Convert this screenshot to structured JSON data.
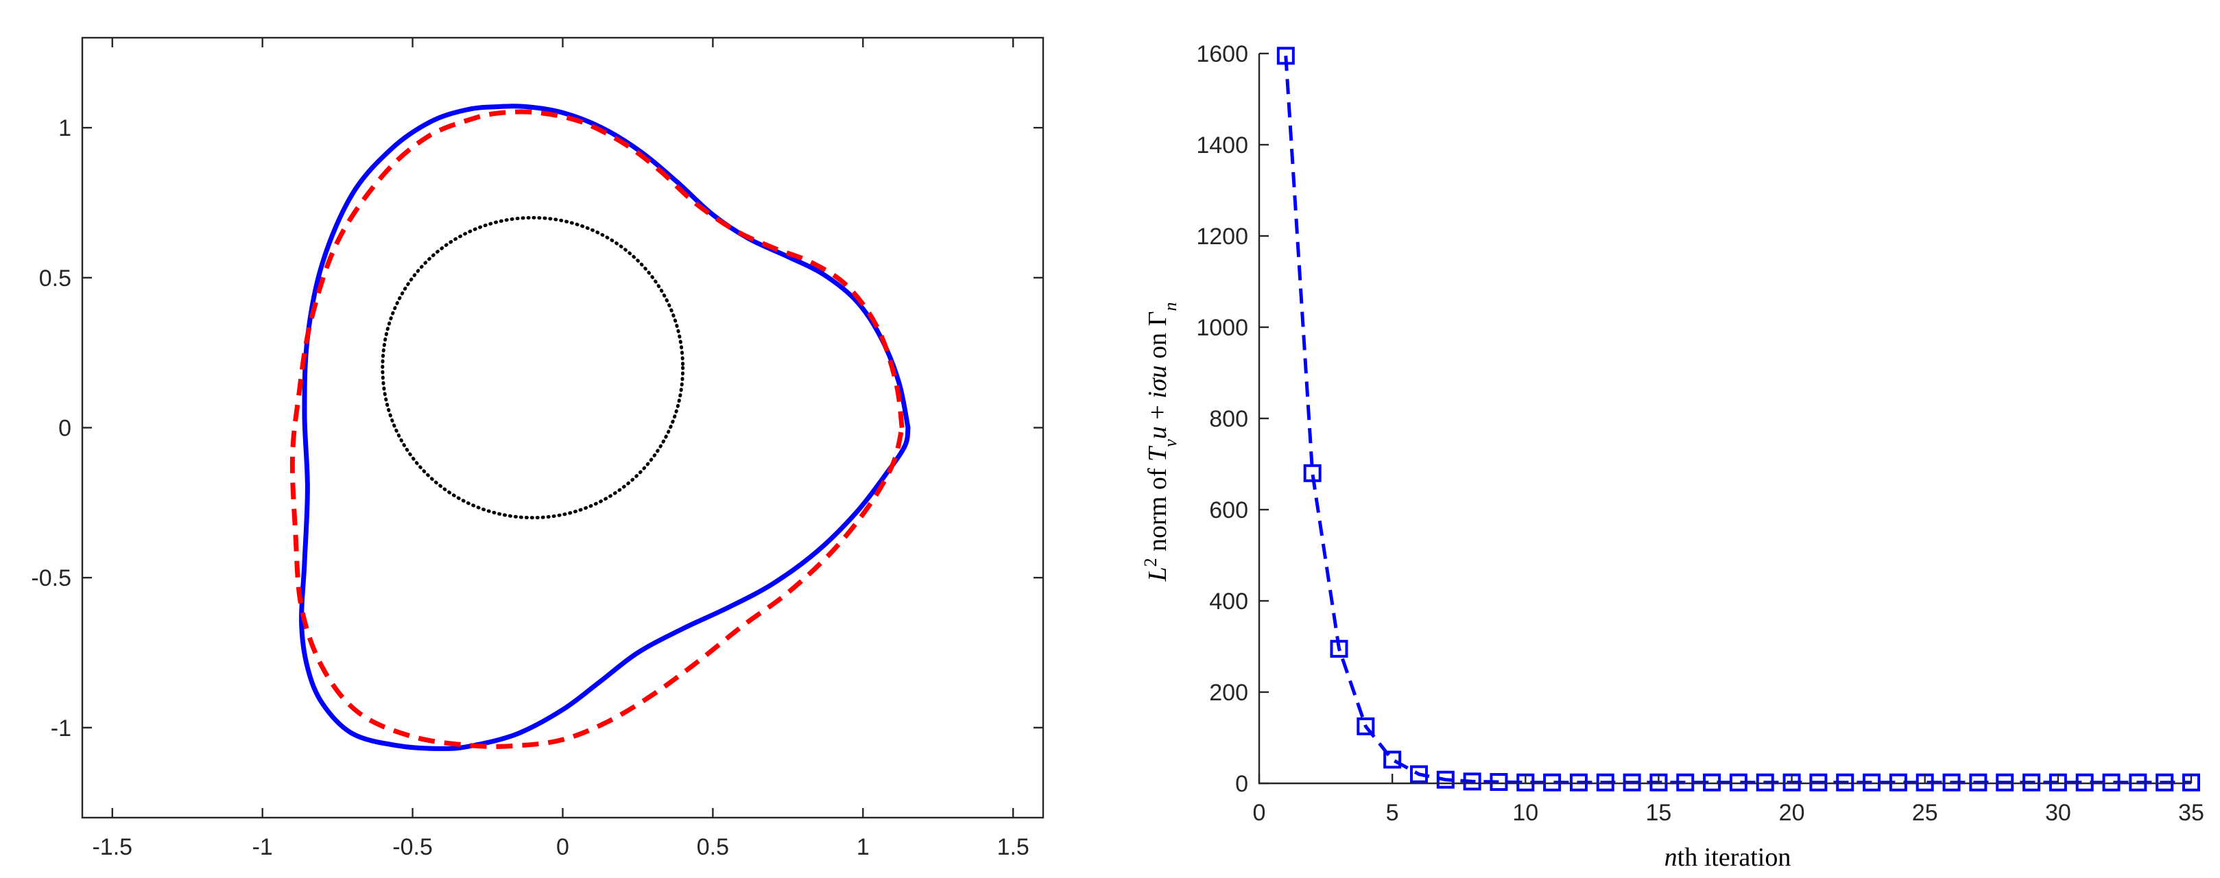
{
  "chart_data": [
    {
      "type": "line",
      "title": "",
      "xlabel": "",
      "ylabel": "",
      "xlim": [
        -1.6,
        1.6
      ],
      "ylim": [
        -1.3,
        1.3
      ],
      "xticks": [
        "-1.5",
        "-1",
        "-0.5",
        "0",
        "0.5",
        "1",
        "1.5"
      ],
      "xtick_values": [
        -1.5,
        -1,
        -0.5,
        0,
        0.5,
        1,
        1.5
      ],
      "yticks": [
        "-1",
        "-0.5",
        "0",
        "0.5",
        "1"
      ],
      "ytick_values": [
        -1,
        -0.5,
        0,
        0.5,
        1
      ],
      "grid": false,
      "legend": "none",
      "series": [
        {
          "style": "solid",
          "color": "#0000ff",
          "x": [
            1.15,
            1.12,
            1.06,
            0.98,
            0.87,
            0.75,
            0.62,
            0.5,
            0.38,
            0.26,
            0.13,
            0.0,
            -0.12,
            -0.22,
            -0.32,
            -0.44,
            -0.57,
            -0.7,
            -0.8,
            -0.85,
            -0.86,
            -0.85,
            -0.86,
            -0.87,
            -0.85,
            -0.8,
            -0.7,
            -0.55,
            -0.4,
            -0.3,
            -0.15,
            0.0,
            0.12,
            0.25,
            0.4,
            0.55,
            0.7,
            0.85,
            0.98,
            1.08,
            1.14,
            1.15
          ],
          "y": [
            0.0,
            0.15,
            0.3,
            0.42,
            0.51,
            0.57,
            0.63,
            0.71,
            0.82,
            0.92,
            1.0,
            1.05,
            1.07,
            1.07,
            1.06,
            1.02,
            0.93,
            0.78,
            0.55,
            0.3,
            0.05,
            -0.2,
            -0.45,
            -0.65,
            -0.8,
            -0.92,
            -1.02,
            -1.06,
            -1.07,
            -1.06,
            -1.02,
            -0.94,
            -0.85,
            -0.75,
            -0.67,
            -0.6,
            -0.52,
            -0.41,
            -0.28,
            -0.15,
            -0.06,
            0.0
          ]
        },
        {
          "style": "dashed",
          "color": "#ff0000",
          "x": [
            1.13,
            1.11,
            1.05,
            0.95,
            0.83,
            0.7,
            0.57,
            0.44,
            0.32,
            0.2,
            0.06,
            -0.08,
            -0.2,
            -0.3,
            -0.45,
            -0.6,
            -0.75,
            -0.84,
            -0.88,
            -0.9,
            -0.89,
            -0.87,
            -0.8,
            -0.68,
            -0.5,
            -0.3,
            -0.15,
            0.0,
            0.15,
            0.3,
            0.45,
            0.6,
            0.75,
            0.9,
            1.02,
            1.1,
            1.13
          ],
          "y": [
            0.0,
            0.15,
            0.33,
            0.47,
            0.55,
            0.6,
            0.66,
            0.75,
            0.86,
            0.95,
            1.02,
            1.05,
            1.05,
            1.03,
            0.97,
            0.84,
            0.62,
            0.35,
            0.1,
            -0.1,
            -0.35,
            -0.6,
            -0.8,
            -0.95,
            -1.03,
            -1.06,
            -1.06,
            -1.04,
            -0.98,
            -0.89,
            -0.78,
            -0.66,
            -0.55,
            -0.41,
            -0.26,
            -0.12,
            0.0
          ]
        },
        {
          "style": "dotted",
          "color": "#000000",
          "shape": "circle",
          "center": [
            -0.1,
            0.2
          ],
          "radius": 0.5
        }
      ]
    },
    {
      "type": "line",
      "title": "",
      "xlabel": "nth iteration",
      "ylabel": "L2 norm of Tνu + iσu on Γn",
      "xlim": [
        0,
        35
      ],
      "ylim": [
        0,
        1600
      ],
      "xticks": [
        "0",
        "5",
        "10",
        "15",
        "20",
        "25",
        "30",
        "35"
      ],
      "xtick_values": [
        0,
        5,
        10,
        15,
        20,
        25,
        30,
        35
      ],
      "yticks": [
        "0",
        "200",
        "400",
        "600",
        "800",
        "1000",
        "1200",
        "1400",
        "1600"
      ],
      "ytick_values": [
        0,
        200,
        400,
        600,
        800,
        1000,
        1200,
        1400,
        1600
      ],
      "grid": false,
      "legend": "none",
      "series": [
        {
          "style": "dashed",
          "marker": "square",
          "color": "#0000ff",
          "x": [
            1,
            2,
            3,
            4,
            5,
            6,
            7,
            8,
            9,
            10,
            11,
            12,
            13,
            14,
            15,
            16,
            17,
            18,
            19,
            20,
            21,
            22,
            23,
            24,
            25,
            26,
            27,
            28,
            29,
            30,
            31,
            32,
            33,
            34,
            35
          ],
          "y": [
            1595,
            680,
            295,
            125,
            52,
            20,
            8,
            4,
            3,
            2,
            2,
            2,
            2,
            2,
            2,
            2,
            2,
            2,
            2,
            2,
            2,
            2,
            2,
            2,
            2,
            2,
            2,
            2,
            2,
            2,
            2,
            2,
            2,
            2,
            2
          ]
        }
      ]
    }
  ]
}
